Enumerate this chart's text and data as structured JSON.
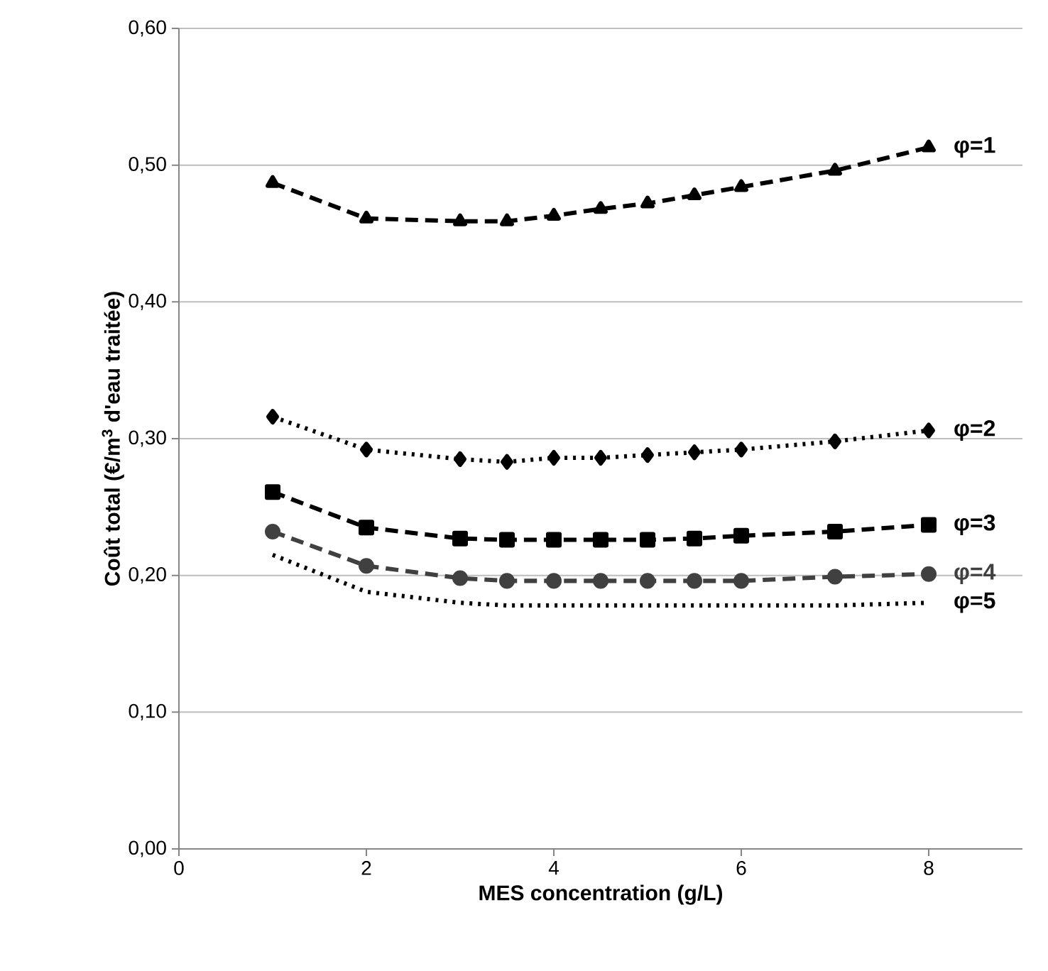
{
  "chart_data": {
    "type": "line",
    "xlabel": "MES concentration (g/L)",
    "ylabel": "Coût total (€/m$^{3}$ d'eau traitée)",
    "x": [
      1,
      2,
      3,
      3.5,
      4,
      4.5,
      5,
      5.5,
      6,
      7,
      8
    ],
    "series": [
      {
        "name": "φ=1",
        "color": "#000000",
        "marker": "triangle",
        "line_style": "dashed",
        "values": [
          0.487,
          0.461,
          0.459,
          0.459,
          0.463,
          0.468,
          0.472,
          0.478,
          0.484,
          0.496,
          0.513
        ]
      },
      {
        "name": "φ=2",
        "color": "#000000",
        "marker": "diamond",
        "line_style": "dotted",
        "values": [
          0.316,
          0.292,
          0.285,
          0.283,
          0.286,
          0.286,
          0.288,
          0.29,
          0.292,
          0.298,
          0.306
        ]
      },
      {
        "name": "φ=3",
        "color": "#000000",
        "marker": "square",
        "line_style": "dashed",
        "values": [
          0.261,
          0.235,
          0.227,
          0.226,
          0.226,
          0.226,
          0.226,
          0.227,
          0.229,
          0.232,
          0.237
        ]
      },
      {
        "name": "φ=4",
        "color": "#404040",
        "marker": "circle",
        "line_style": "dashed",
        "values": [
          0.232,
          0.207,
          0.198,
          0.196,
          0.196,
          0.196,
          0.196,
          0.196,
          0.196,
          0.199,
          0.201
        ]
      },
      {
        "name": "φ=5",
        "color": "#000000",
        "marker": "none",
        "line_style": "dotted",
        "values": [
          0.215,
          0.188,
          0.18,
          0.178,
          0.178,
          0.178,
          0.178,
          0.178,
          0.178,
          0.178,
          0.18
        ]
      }
    ],
    "xlim": [
      0,
      9
    ],
    "xticks": [
      0,
      2,
      4,
      6,
      8
    ],
    "ylim": [
      0,
      0.6
    ],
    "yticks": [
      {
        "value": 0,
        "label": "0,00"
      },
      {
        "value": 0.1,
        "label": "0,10"
      },
      {
        "value": 0.2,
        "label": "0,20"
      },
      {
        "value": 0.3,
        "label": "0,30"
      },
      {
        "value": 0.4,
        "label": "0,40"
      },
      {
        "value": 0.5,
        "label": "0,50"
      },
      {
        "value": 0.6,
        "label": "0,60"
      }
    ],
    "grid": "y"
  }
}
